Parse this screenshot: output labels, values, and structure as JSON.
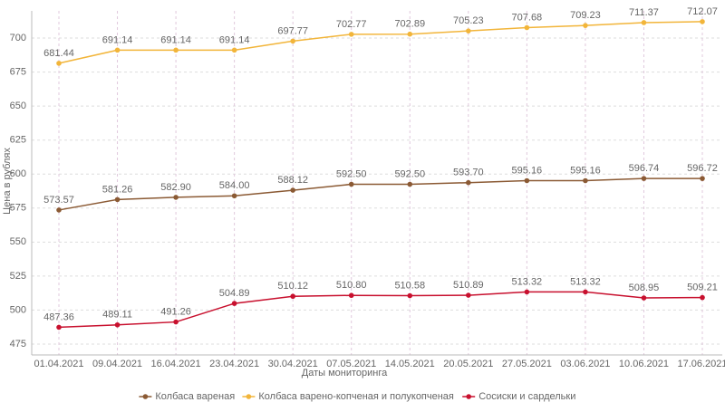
{
  "chart_data": {
    "type": "line",
    "x_label": "Даты мониторинга",
    "y_label": "Цена в рублях",
    "categories": [
      "01.04.2021",
      "09.04.2021",
      "16.04.2021",
      "23.04.2021",
      "30.04.2021",
      "07.05.2021",
      "14.05.2021",
      "20.05.2021",
      "27.05.2021",
      "03.06.2021",
      "10.06.2021",
      "17.06.2021"
    ],
    "series": [
      {
        "name": "Колбаса вареная",
        "color": "#8b5a34",
        "values": [
          573.57,
          581.26,
          582.9,
          584,
          588.12,
          592.5,
          592.5,
          593.7,
          595.16,
          595.16,
          596.74,
          596.72
        ],
        "value_labels": [
          "573.57",
          "581.26",
          "582.90",
          "584.00",
          "588.12",
          "592.50",
          "592.50",
          "593.70",
          "595.16",
          "595.16",
          "596.74",
          "596.72"
        ]
      },
      {
        "name": "Колбаса варено-копченая и полукопченая",
        "color": "#f2b53a",
        "values": [
          681.44,
          691.14,
          691.14,
          691.14,
          697.77,
          702.77,
          702.89,
          705.23,
          707.68,
          709.23,
          711.37,
          712.07
        ],
        "value_labels": [
          "681.44",
          "691.14",
          "691.14",
          "691.14",
          "697.77",
          "702.77",
          "702.89",
          "705.23",
          "707.68",
          "709.23",
          "711.37",
          "712.07"
        ]
      },
      {
        "name": "Сосиски и сардельки",
        "color": "#c8102e",
        "values": [
          487.36,
          489.11,
          491.26,
          504.89,
          510.12,
          510.8,
          510.58,
          510.89,
          513.32,
          513.32,
          508.95,
          509.21
        ],
        "value_labels": [
          "487.36",
          "489.11",
          "491.26",
          "504.89",
          "510.12",
          "510.80",
          "510.58",
          "510.89",
          "513.32",
          "513.32",
          "508.95",
          "509.21"
        ]
      }
    ],
    "ylim": [
      467,
      720
    ],
    "yticks": [
      475,
      500,
      525,
      550,
      575,
      600,
      625,
      650,
      675,
      700
    ],
    "grid": true
  }
}
